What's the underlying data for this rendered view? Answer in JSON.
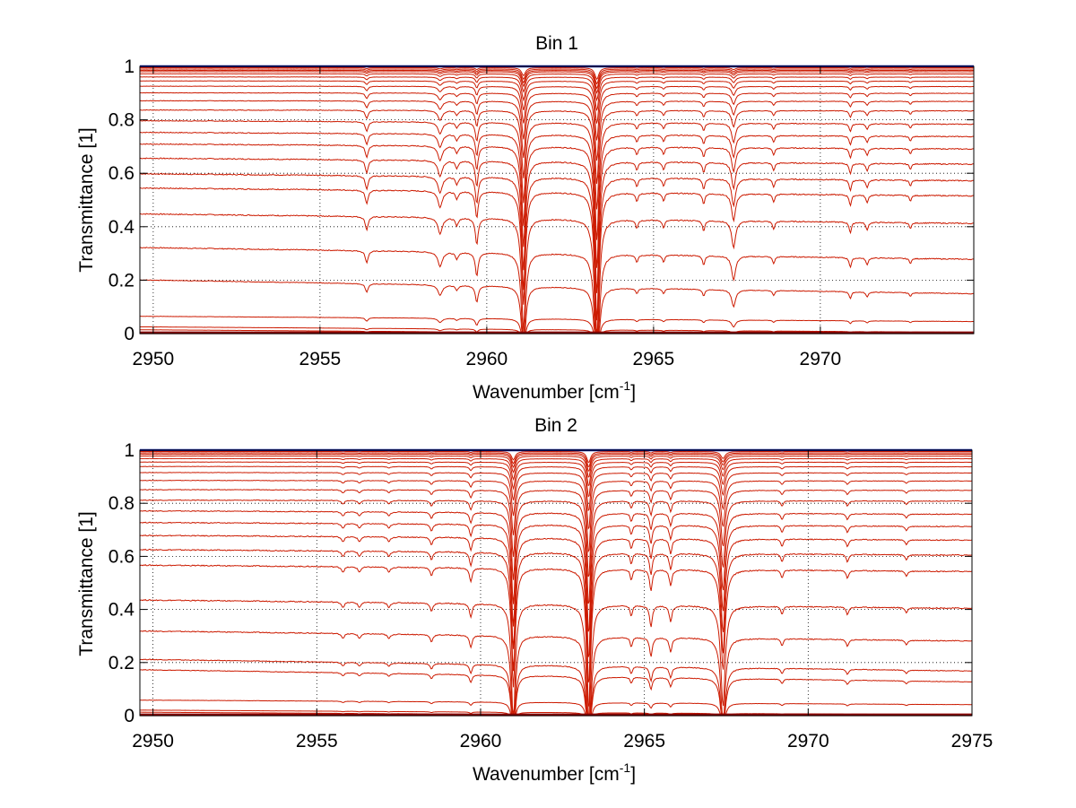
{
  "figure": {
    "background": "#ffffff",
    "curve_color": "#cc1a00",
    "top_curve_color": "#0a1a9a",
    "grid_color": "#000000",
    "axes_color": "#000000"
  },
  "chart_data": [
    {
      "type": "line",
      "title": "Bin 1",
      "xlabel": "Wavenumber [cm",
      "xlabel_sup": "-1",
      "xlabel_suffix": "]",
      "ylabel": "Transmittance [1]",
      "xlim": [
        2949.6,
        2974.6
      ],
      "ylim": [
        0,
        1
      ],
      "xticks": [
        2950,
        2955,
        2960,
        2965,
        2970
      ],
      "xtick_labels": [
        "2950",
        "2955",
        "2960",
        "2965",
        "2970"
      ],
      "yticks": [
        0,
        0.2,
        0.4,
        0.6,
        0.8,
        1
      ],
      "ytick_labels": [
        "0",
        "0.2",
        "0.4",
        "0.6",
        "0.8",
        "1"
      ],
      "grid": true,
      "series_baselines": [
        1.0,
        0.995,
        0.99,
        0.985,
        0.98,
        0.972,
        0.96,
        0.945,
        0.925,
        0.9,
        0.87,
        0.835,
        0.79,
        0.745,
        0.7,
        0.645,
        0.585,
        0.53,
        0.43,
        0.3,
        0.175,
        0.055,
        0.015,
        0.004
      ],
      "baseline_slope": 0.105,
      "absorption_lines": [
        {
          "center": 2956.4,
          "depth": 0.05,
          "width": 0.05
        },
        {
          "center": 2958.6,
          "depth": 0.06,
          "width": 0.08
        },
        {
          "center": 2959.1,
          "depth": 0.03,
          "width": 0.05
        },
        {
          "center": 2959.7,
          "depth": 0.1,
          "width": 0.05
        },
        {
          "center": 2961.1,
          "depth": 0.42,
          "width": 0.07
        },
        {
          "center": 2963.3,
          "depth": 0.62,
          "width": 0.07
        },
        {
          "center": 2964.5,
          "depth": 0.03,
          "width": 0.04
        },
        {
          "center": 2965.3,
          "depth": 0.03,
          "width": 0.04
        },
        {
          "center": 2966.5,
          "depth": 0.04,
          "width": 0.04
        },
        {
          "center": 2967.4,
          "depth": 0.1,
          "width": 0.07
        },
        {
          "center": 2968.6,
          "depth": 0.03,
          "width": 0.04
        },
        {
          "center": 2970.9,
          "depth": 0.04,
          "width": 0.04
        },
        {
          "center": 2971.4,
          "depth": 0.03,
          "width": 0.04
        },
        {
          "center": 2972.7,
          "depth": 0.02,
          "width": 0.04
        }
      ]
    },
    {
      "type": "line",
      "title": "Bin 2",
      "xlabel": "Wavenumber [cm",
      "xlabel_sup": "-1",
      "xlabel_suffix": "]",
      "ylabel": "Transmittance [1]",
      "xlim": [
        2949.6,
        2975.0
      ],
      "ylim": [
        0,
        1
      ],
      "xticks": [
        2950,
        2955,
        2960,
        2965,
        2970,
        2975
      ],
      "xtick_labels": [
        "2950",
        "2955",
        "2960",
        "2965",
        "2970",
        "2975"
      ],
      "yticks": [
        0,
        0.2,
        0.4,
        0.6,
        0.8,
        1
      ],
      "ytick_labels": [
        "0",
        "0.2",
        "0.4",
        "0.6",
        "0.8",
        "1"
      ],
      "grid": true,
      "series_baselines": [
        1.0,
        0.995,
        0.99,
        0.985,
        0.978,
        0.968,
        0.955,
        0.938,
        0.915,
        0.885,
        0.85,
        0.81,
        0.765,
        0.72,
        0.67,
        0.615,
        0.555,
        0.42,
        0.3,
        0.19,
        0.15,
        0.05,
        0.012,
        0.004
      ],
      "baseline_slope": 0.09,
      "absorption_lines": [
        {
          "center": 2955.8,
          "depth": 0.02,
          "width": 0.05
        },
        {
          "center": 2956.3,
          "depth": 0.02,
          "width": 0.05
        },
        {
          "center": 2957.2,
          "depth": 0.02,
          "width": 0.05
        },
        {
          "center": 2958.5,
          "depth": 0.03,
          "width": 0.05
        },
        {
          "center": 2959.7,
          "depth": 0.05,
          "width": 0.05
        },
        {
          "center": 2961.0,
          "depth": 0.45,
          "width": 0.07
        },
        {
          "center": 2963.3,
          "depth": 0.6,
          "width": 0.07
        },
        {
          "center": 2964.6,
          "depth": 0.04,
          "width": 0.04
        },
        {
          "center": 2965.2,
          "depth": 0.08,
          "width": 0.05
        },
        {
          "center": 2965.8,
          "depth": 0.06,
          "width": 0.05
        },
        {
          "center": 2967.4,
          "depth": 0.38,
          "width": 0.08
        },
        {
          "center": 2969.2,
          "depth": 0.03,
          "width": 0.04
        },
        {
          "center": 2971.2,
          "depth": 0.03,
          "width": 0.04
        },
        {
          "center": 2973.0,
          "depth": 0.02,
          "width": 0.04
        }
      ]
    }
  ]
}
